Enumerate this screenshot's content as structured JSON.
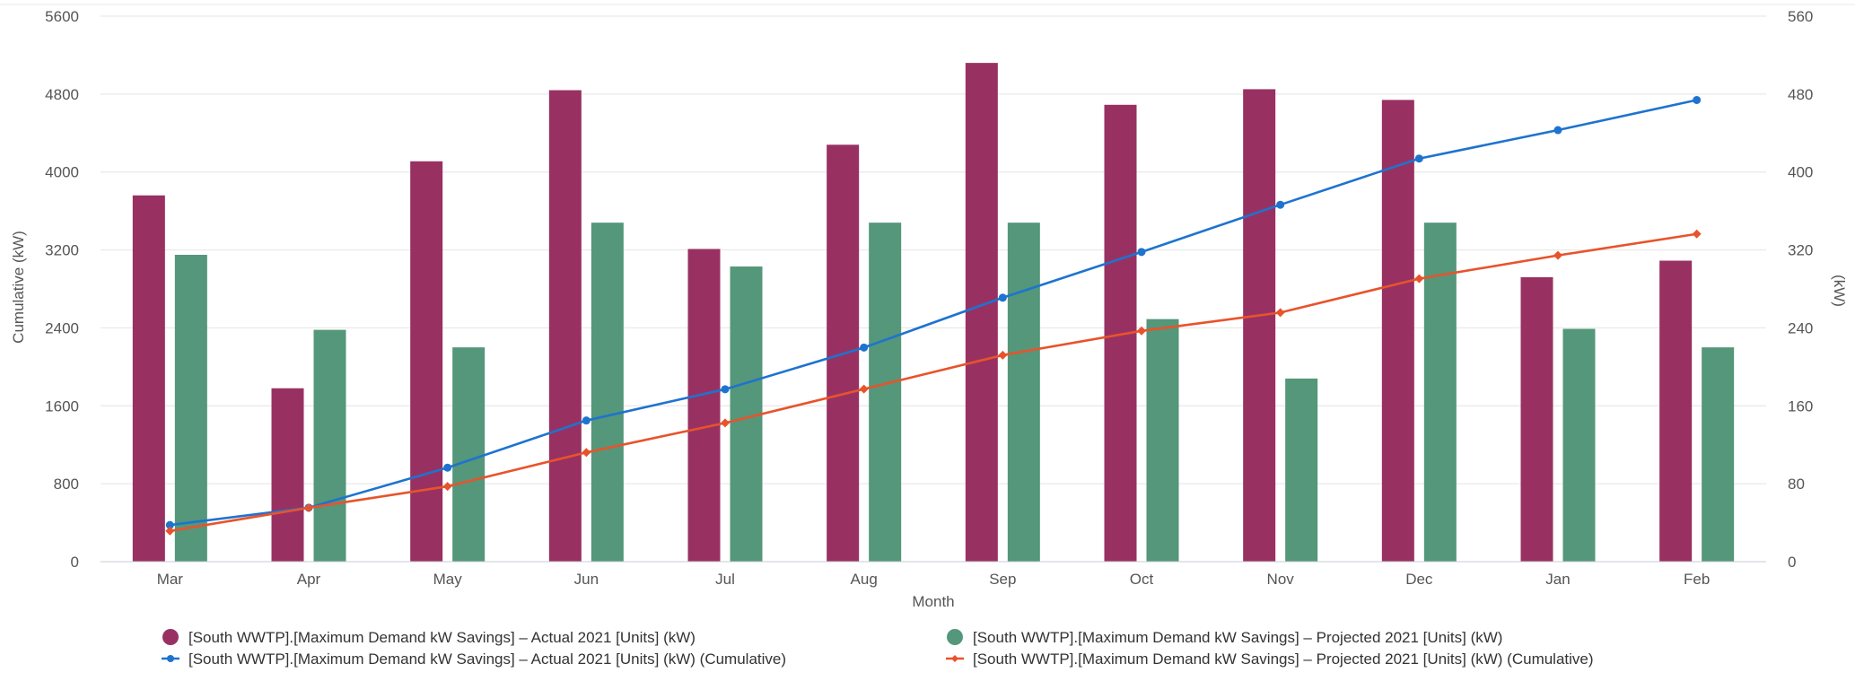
{
  "chart_data": {
    "type": "bar",
    "categories": [
      "Mar",
      "Apr",
      "May",
      "Jun",
      "Jul",
      "Aug",
      "Sep",
      "Oct",
      "Nov",
      "Dec",
      "Jan",
      "Feb"
    ],
    "xlabel": "Month",
    "ylabel_left": "Cumulative (kW)",
    "ylabel_right": "(kW)",
    "ylim_left": [
      0,
      5600
    ],
    "ylim_right": [
      0,
      560
    ],
    "yticks_left": [
      "0",
      "800",
      "1600",
      "2400",
      "3200",
      "4000",
      "4800",
      "5600"
    ],
    "yticks_right": [
      "0",
      "80",
      "160",
      "240",
      "320",
      "400",
      "480",
      "560"
    ],
    "grid": true,
    "legend_position": "bottom",
    "series": [
      {
        "name": "[South WWTP].[Maximum Demand kW Savings] – Actual 2021 [Units] (kW)",
        "kind": "bar",
        "axis": "right",
        "color": "#983162",
        "values": [
          376,
          178,
          411,
          484,
          321,
          428,
          512,
          469,
          485,
          474,
          292,
          309
        ]
      },
      {
        "name": "[South WWTP].[Maximum Demand kW Savings] – Projected 2021 [Units] (kW)",
        "kind": "bar",
        "axis": "right",
        "color": "#54977a",
        "values": [
          315,
          238,
          220,
          348,
          303,
          348,
          348,
          249,
          188,
          348,
          239,
          220
        ]
      },
      {
        "name": "[South WWTP].[Maximum Demand kW Savings] – Actual 2021 [Units] (kW) (Cumulative)",
        "kind": "line",
        "axis": "left",
        "color": "#1e73cf",
        "values": [
          376,
          554,
          965,
          1449,
          1770,
          2198,
          2710,
          3179,
          3664,
          4138,
          4430,
          4739
        ]
      },
      {
        "name": "[South WWTP].[Maximum Demand kW Savings] – Projected 2021 [Units] (kW) (Cumulative)",
        "kind": "line",
        "axis": "left",
        "color": "#e8532b",
        "values": [
          315,
          553,
          773,
          1121,
          1424,
          1772,
          2120,
          2369,
          2557,
          2905,
          3144,
          3364
        ]
      }
    ]
  }
}
